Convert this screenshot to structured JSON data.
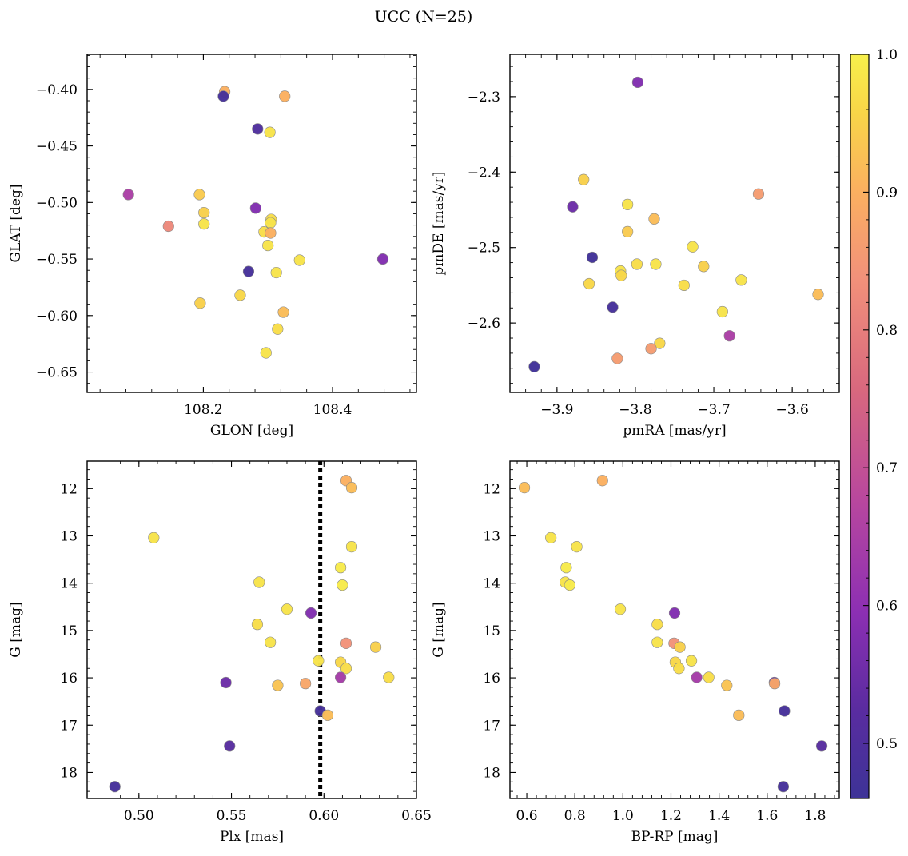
{
  "figure": {
    "title": "UCC (N=25)"
  },
  "colorbar": {
    "ticks": [
      "0.5",
      "0.6",
      "0.7",
      "0.8",
      "0.9",
      "1.0"
    ],
    "tick_values": [
      0.5,
      0.6,
      0.7,
      0.8,
      0.9,
      1.0
    ],
    "range": [
      0.46,
      1.0
    ],
    "colormap": "plasma"
  },
  "chart_data": [
    {
      "type": "scatter",
      "xlabel": "GLON [deg]",
      "ylabel": "GLAT [deg]",
      "xlim": [
        108.02,
        108.53
      ],
      "ylim": [
        -0.668,
        -0.369
      ],
      "y_inverted": false,
      "xticks": [
        108.2,
        108.4
      ],
      "xtick_labels": [
        "108.2",
        "108.4"
      ],
      "yticks": [
        -0.4,
        -0.45,
        -0.5,
        -0.55,
        -0.6,
        -0.65
      ],
      "ytick_labels": [
        "−0.40",
        "−0.45",
        "−0.50",
        "−0.55",
        "−0.60",
        "−0.65"
      ],
      "points": [
        {
          "x": 108.233,
          "y": -0.402,
          "p": 0.9
        },
        {
          "x": 108.231,
          "y": -0.406,
          "p": 0.48
        },
        {
          "x": 108.326,
          "y": -0.406,
          "p": 0.9
        },
        {
          "x": 108.284,
          "y": -0.435,
          "p": 0.5
        },
        {
          "x": 108.303,
          "y": -0.438,
          "p": 0.98
        },
        {
          "x": 108.084,
          "y": -0.493,
          "p": 0.65
        },
        {
          "x": 108.194,
          "y": -0.493,
          "p": 0.94
        },
        {
          "x": 108.281,
          "y": -0.505,
          "p": 0.58
        },
        {
          "x": 108.201,
          "y": -0.509,
          "p": 0.95
        },
        {
          "x": 108.305,
          "y": -0.515,
          "p": 0.97
        },
        {
          "x": 108.304,
          "y": -0.518,
          "p": 0.98
        },
        {
          "x": 108.146,
          "y": -0.521,
          "p": 0.82
        },
        {
          "x": 108.201,
          "y": -0.519,
          "p": 0.98
        },
        {
          "x": 108.294,
          "y": -0.526,
          "p": 0.97
        },
        {
          "x": 108.304,
          "y": -0.527,
          "p": 0.9
        },
        {
          "x": 108.3,
          "y": -0.538,
          "p": 0.98
        },
        {
          "x": 108.349,
          "y": -0.551,
          "p": 0.98
        },
        {
          "x": 108.478,
          "y": -0.55,
          "p": 0.58
        },
        {
          "x": 108.27,
          "y": -0.561,
          "p": 0.48
        },
        {
          "x": 108.313,
          "y": -0.562,
          "p": 0.98
        },
        {
          "x": 108.257,
          "y": -0.582,
          "p": 0.96
        },
        {
          "x": 108.195,
          "y": -0.589,
          "p": 0.95
        },
        {
          "x": 108.324,
          "y": -0.597,
          "p": 0.92
        },
        {
          "x": 108.315,
          "y": -0.612,
          "p": 0.97
        },
        {
          "x": 108.297,
          "y": -0.633,
          "p": 0.98
        }
      ]
    },
    {
      "type": "scatter",
      "xlabel": "pmRA [mas/yr]",
      "ylabel": "pmDE [mas/yr]",
      "xlim": [
        -3.96,
        -3.54
      ],
      "ylim": [
        -2.692,
        -2.244
      ],
      "y_inverted": false,
      "xticks": [
        -3.9,
        -3.8,
        -3.7,
        -3.6
      ],
      "xtick_labels": [
        "−3.9",
        "−3.8",
        "−3.7",
        "−3.6"
      ],
      "yticks": [
        -2.3,
        -2.4,
        -2.5,
        -2.6
      ],
      "ytick_labels": [
        "−2.3",
        "−2.4",
        "−2.5",
        "−2.6"
      ],
      "points": [
        {
          "x": -3.797,
          "y": -2.281,
          "p": 0.58
        },
        {
          "x": -3.866,
          "y": -2.41,
          "p": 0.95
        },
        {
          "x": -3.643,
          "y": -2.429,
          "p": 0.86
        },
        {
          "x": -3.81,
          "y": -2.443,
          "p": 0.98
        },
        {
          "x": -3.88,
          "y": -2.446,
          "p": 0.55
        },
        {
          "x": -3.776,
          "y": -2.462,
          "p": 0.92
        },
        {
          "x": -3.81,
          "y": -2.479,
          "p": 0.94
        },
        {
          "x": -3.727,
          "y": -2.499,
          "p": 0.98
        },
        {
          "x": -3.855,
          "y": -2.513,
          "p": 0.47
        },
        {
          "x": -3.798,
          "y": -2.522,
          "p": 0.97
        },
        {
          "x": -3.774,
          "y": -2.522,
          "p": 0.98
        },
        {
          "x": -3.713,
          "y": -2.525,
          "p": 0.95
        },
        {
          "x": -3.819,
          "y": -2.531,
          "p": 0.98
        },
        {
          "x": -3.818,
          "y": -2.537,
          "p": 0.96
        },
        {
          "x": -3.665,
          "y": -2.543,
          "p": 0.98
        },
        {
          "x": -3.859,
          "y": -2.548,
          "p": 0.96
        },
        {
          "x": -3.738,
          "y": -2.55,
          "p": 0.97
        },
        {
          "x": -3.567,
          "y": -2.562,
          "p": 0.92
        },
        {
          "x": -3.829,
          "y": -2.579,
          "p": 0.48
        },
        {
          "x": -3.689,
          "y": -2.585,
          "p": 0.98
        },
        {
          "x": -3.68,
          "y": -2.617,
          "p": 0.65
        },
        {
          "x": -3.769,
          "y": -2.627,
          "p": 0.96
        },
        {
          "x": -3.78,
          "y": -2.634,
          "p": 0.86
        },
        {
          "x": -3.823,
          "y": -2.647,
          "p": 0.86
        },
        {
          "x": -3.929,
          "y": -2.658,
          "p": 0.47
        }
      ]
    },
    {
      "type": "scatter",
      "xlabel": "Plx [mas]",
      "ylabel": "G [mag]",
      "xlim": [
        0.472,
        0.65
      ],
      "ylim": [
        18.55,
        11.42
      ],
      "y_inverted": true,
      "vline": {
        "x": 0.598,
        "style": "dotted",
        "color": "#000000"
      },
      "xticks": [
        0.5,
        0.55,
        0.6,
        0.65
      ],
      "xtick_labels": [
        "0.50",
        "0.55",
        "0.60",
        "0.65"
      ],
      "yticks": [
        12,
        13,
        14,
        15,
        16,
        17,
        18
      ],
      "ytick_labels": [
        "12",
        "13",
        "14",
        "15",
        "16",
        "17",
        "18"
      ],
      "points": [
        {
          "x": 0.612,
          "y": 11.83,
          "p": 0.9
        },
        {
          "x": 0.615,
          "y": 11.98,
          "p": 0.92
        },
        {
          "x": 0.508,
          "y": 13.04,
          "p": 0.98
        },
        {
          "x": 0.615,
          "y": 13.23,
          "p": 0.98
        },
        {
          "x": 0.609,
          "y": 13.67,
          "p": 0.99
        },
        {
          "x": 0.565,
          "y": 13.98,
          "p": 0.98
        },
        {
          "x": 0.61,
          "y": 14.04,
          "p": 0.99
        },
        {
          "x": 0.58,
          "y": 14.55,
          "p": 0.98
        },
        {
          "x": 0.593,
          "y": 14.63,
          "p": 0.58
        },
        {
          "x": 0.564,
          "y": 14.87,
          "p": 0.97
        },
        {
          "x": 0.571,
          "y": 15.25,
          "p": 0.98
        },
        {
          "x": 0.612,
          "y": 15.27,
          "p": 0.84
        },
        {
          "x": 0.628,
          "y": 15.35,
          "p": 0.95
        },
        {
          "x": 0.597,
          "y": 15.64,
          "p": 0.98
        },
        {
          "x": 0.609,
          "y": 15.67,
          "p": 0.96
        },
        {
          "x": 0.612,
          "y": 15.8,
          "p": 0.97
        },
        {
          "x": 0.609,
          "y": 15.99,
          "p": 0.64
        },
        {
          "x": 0.635,
          "y": 15.99,
          "p": 0.97
        },
        {
          "x": 0.547,
          "y": 16.1,
          "p": 0.55
        },
        {
          "x": 0.59,
          "y": 16.12,
          "p": 0.88
        },
        {
          "x": 0.575,
          "y": 16.16,
          "p": 0.93
        },
        {
          "x": 0.598,
          "y": 16.7,
          "p": 0.48
        },
        {
          "x": 0.602,
          "y": 16.79,
          "p": 0.92
        },
        {
          "x": 0.549,
          "y": 17.44,
          "p": 0.52
        },
        {
          "x": 0.487,
          "y": 18.3,
          "p": 0.48
        }
      ]
    },
    {
      "type": "scatter",
      "xlabel": "BP-RP [mag]",
      "ylabel": "G [mag]",
      "xlim": [
        0.53,
        1.9
      ],
      "ylim": [
        18.55,
        11.42
      ],
      "y_inverted": true,
      "xticks": [
        0.6,
        0.8,
        1.0,
        1.2,
        1.4,
        1.6,
        1.8
      ],
      "xtick_labels": [
        "0.6",
        "0.8",
        "1.0",
        "1.2",
        "1.4",
        "1.6",
        "1.8"
      ],
      "yticks": [
        12,
        13,
        14,
        15,
        16,
        17,
        18
      ],
      "ytick_labels": [
        "12",
        "13",
        "14",
        "15",
        "16",
        "17",
        "18"
      ],
      "points": [
        {
          "x": 0.59,
          "y": 11.98,
          "p": 0.92
        },
        {
          "x": 0.915,
          "y": 11.83,
          "p": 0.9
        },
        {
          "x": 0.7,
          "y": 13.04,
          "p": 0.98
        },
        {
          "x": 0.808,
          "y": 13.23,
          "p": 0.98
        },
        {
          "x": 0.764,
          "y": 13.67,
          "p": 0.99
        },
        {
          "x": 0.76,
          "y": 13.98,
          "p": 0.98
        },
        {
          "x": 0.779,
          "y": 14.04,
          "p": 0.99
        },
        {
          "x": 0.989,
          "y": 14.55,
          "p": 0.98
        },
        {
          "x": 1.215,
          "y": 14.63,
          "p": 0.58
        },
        {
          "x": 1.143,
          "y": 14.87,
          "p": 0.97
        },
        {
          "x": 1.143,
          "y": 15.25,
          "p": 0.98
        },
        {
          "x": 1.213,
          "y": 15.27,
          "p": 0.84
        },
        {
          "x": 1.237,
          "y": 15.35,
          "p": 0.95
        },
        {
          "x": 1.285,
          "y": 15.64,
          "p": 0.98
        },
        {
          "x": 1.218,
          "y": 15.67,
          "p": 0.96
        },
        {
          "x": 1.233,
          "y": 15.8,
          "p": 0.97
        },
        {
          "x": 1.307,
          "y": 15.99,
          "p": 0.64
        },
        {
          "x": 1.357,
          "y": 15.99,
          "p": 0.97
        },
        {
          "x": 1.63,
          "y": 16.1,
          "p": 0.55
        },
        {
          "x": 1.631,
          "y": 16.12,
          "p": 0.88
        },
        {
          "x": 1.432,
          "y": 16.16,
          "p": 0.93
        },
        {
          "x": 1.672,
          "y": 16.7,
          "p": 0.48
        },
        {
          "x": 1.482,
          "y": 16.79,
          "p": 0.92
        },
        {
          "x": 1.827,
          "y": 17.44,
          "p": 0.52
        },
        {
          "x": 1.667,
          "y": 18.3,
          "p": 0.48
        }
      ]
    }
  ]
}
